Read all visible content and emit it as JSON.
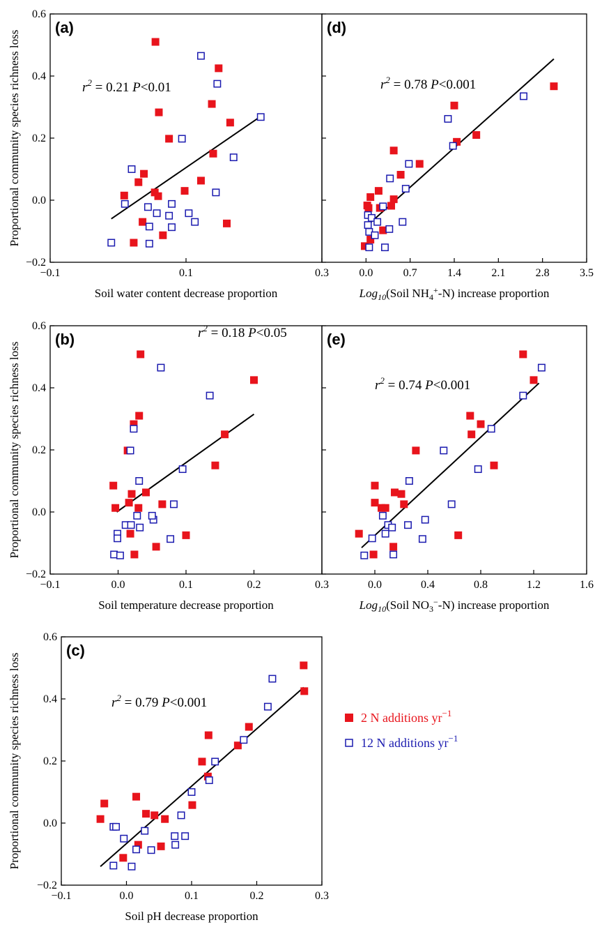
{
  "figure": {
    "ylabel": "Proportional community species richness loss",
    "legend": [
      {
        "label": "2 N additions yr",
        "sup": "−1",
        "color": "#e8141c",
        "marker": "filled-square"
      },
      {
        "label": "12 N additions yr",
        "sup": "−1",
        "color": "#1a1aaf",
        "marker": "open-square"
      }
    ]
  },
  "chart_data": [
    {
      "id": "a",
      "panel_label": "(a)",
      "type": "scatter",
      "xlabel": "Soil water content decrease proportion",
      "xlim": [
        -0.1,
        0.3
      ],
      "ylim": [
        -0.2,
        0.6
      ],
      "xticks": [
        "-0.1",
        "0.1",
        "0.3"
      ],
      "yticks": [
        "-0.2",
        "0.0",
        "0.2",
        "0.4",
        "0.6"
      ],
      "stat": {
        "r2": "0.21",
        "p": "0.01"
      },
      "fit": [
        [
          -0.01,
          -0.06
        ],
        [
          0.21,
          0.27
        ]
      ],
      "series": [
        {
          "name": "2 N additions yr−1",
          "marker": "filled",
          "points": [
            [
              0.055,
              0.51
            ],
            [
              0.148,
              0.425
            ],
            [
              0.138,
              0.31
            ],
            [
              0.06,
              0.283
            ],
            [
              0.165,
              0.25
            ],
            [
              0.075,
              0.198
            ],
            [
              0.14,
              0.15
            ],
            [
              0.038,
              0.085
            ],
            [
              0.122,
              0.063
            ],
            [
              0.03,
              0.058
            ],
            [
              0.098,
              0.03
            ],
            [
              0.054,
              0.025
            ],
            [
              0.009,
              0.015
            ],
            [
              0.059,
              0.013
            ],
            [
              0.036,
              -0.07
            ],
            [
              0.16,
              -0.075
            ],
            [
              0.066,
              -0.113
            ],
            [
              0.023,
              -0.137
            ]
          ]
        },
        {
          "name": "12 N additions yr−1",
          "marker": "open",
          "points": [
            [
              0.122,
              0.465
            ],
            [
              0.146,
              0.375
            ],
            [
              0.21,
              0.268
            ],
            [
              0.094,
              0.198
            ],
            [
              0.17,
              0.138
            ],
            [
              0.02,
              0.1
            ],
            [
              0.144,
              0.025
            ],
            [
              0.01,
              -0.012
            ],
            [
              0.079,
              -0.012
            ],
            [
              0.044,
              -0.022
            ],
            [
              0.057,
              -0.042
            ],
            [
              0.104,
              -0.042
            ],
            [
              0.075,
              -0.05
            ],
            [
              0.113,
              -0.07
            ],
            [
              0.046,
              -0.085
            ],
            [
              0.079,
              -0.087
            ],
            [
              -0.01,
              -0.137
            ],
            [
              0.046,
              -0.14
            ]
          ]
        }
      ]
    },
    {
      "id": "d",
      "panel_label": "(d)",
      "type": "scatter",
      "xlabel": "Log10(Soil NH4+-N) increase proportion",
      "xlim": [
        -0.7,
        3.5
      ],
      "ylim": [
        -0.2,
        0.6
      ],
      "xticks": [
        "0.0",
        "0.7",
        "1.4",
        "2.1",
        "2.8",
        "3.5"
      ],
      "xtick_values": [
        0,
        0.7,
        1.4,
        2.1,
        2.8,
        3.5
      ],
      "yticks": [],
      "ytick_values": [
        -0.2,
        0.0,
        0.2,
        0.4,
        0.6
      ],
      "stat": {
        "r2": "0.78",
        "p": "0.001"
      },
      "fit": [
        [
          0.0,
          -0.085
        ],
        [
          2.98,
          0.455
        ]
      ],
      "series": [
        {
          "name": "2 N additions yr−1",
          "marker": "filled",
          "points": [
            [
              2.98,
              0.367
            ],
            [
              1.4,
              0.305
            ],
            [
              1.75,
              0.21
            ],
            [
              1.44,
              0.188
            ],
            [
              0.44,
              0.16
            ],
            [
              0.85,
              0.117
            ],
            [
              0.55,
              0.082
            ],
            [
              0.2,
              0.03
            ],
            [
              0.07,
              0.01
            ],
            [
              0.44,
              0.003
            ],
            [
              0.02,
              -0.017
            ],
            [
              0.4,
              -0.018
            ],
            [
              0.04,
              -0.025
            ],
            [
              0.22,
              -0.025
            ],
            [
              0.27,
              -0.097
            ],
            [
              0.07,
              -0.127
            ],
            [
              -0.02,
              -0.148
            ]
          ]
        },
        {
          "name": "12 N additions yr−1",
          "marker": "open",
          "points": [
            [
              2.5,
              0.335
            ],
            [
              1.3,
              0.262
            ],
            [
              1.38,
              0.175
            ],
            [
              0.68,
              0.117
            ],
            [
              0.38,
              0.07
            ],
            [
              0.63,
              0.037
            ],
            [
              0.27,
              -0.02
            ],
            [
              0.03,
              -0.048
            ],
            [
              0.09,
              -0.057
            ],
            [
              0.58,
              -0.07
            ],
            [
              0.18,
              -0.07
            ],
            [
              0.03,
              -0.08
            ],
            [
              0.37,
              -0.093
            ],
            [
              0.05,
              -0.102
            ],
            [
              0.14,
              -0.113
            ],
            [
              0.3,
              -0.152
            ],
            [
              0.05,
              -0.152
            ]
          ]
        }
      ]
    },
    {
      "id": "b",
      "panel_label": "(b)",
      "type": "scatter",
      "xlabel": "Soil temperature decrease proportion",
      "xlim": [
        -0.1,
        0.3
      ],
      "ylim": [
        -0.2,
        0.6
      ],
      "xticks": [
        "-0.1",
        "0.0",
        "0.1",
        "0.2",
        "0.3"
      ],
      "yticks": [
        "-0.2",
        "0.0",
        "0.2",
        "0.4",
        "0.6"
      ],
      "stat": {
        "r2": "0.18",
        "p": "0.05"
      },
      "fit": [
        [
          -0.002,
          0.0
        ],
        [
          0.2,
          0.315
        ]
      ],
      "series": [
        {
          "name": "2 N additions yr−1",
          "marker": "filled",
          "points": [
            [
              0.033,
              0.508
            ],
            [
              0.2,
              0.425
            ],
            [
              0.031,
              0.31
            ],
            [
              0.023,
              0.283
            ],
            [
              0.157,
              0.25
            ],
            [
              0.014,
              0.198
            ],
            [
              0.143,
              0.15
            ],
            [
              -0.007,
              0.085
            ],
            [
              0.041,
              0.063
            ],
            [
              0.02,
              0.058
            ],
            [
              0.016,
              0.03
            ],
            [
              0.065,
              0.025
            ],
            [
              -0.004,
              0.013
            ],
            [
              0.03,
              0.013
            ],
            [
              0.018,
              -0.07
            ],
            [
              0.1,
              -0.075
            ],
            [
              0.056,
              -0.112
            ],
            [
              0.024,
              -0.137
            ]
          ]
        },
        {
          "name": "12 N additions yr−1",
          "marker": "open",
          "points": [
            [
              0.063,
              0.465
            ],
            [
              0.135,
              0.375
            ],
            [
              0.023,
              0.268
            ],
            [
              0.018,
              0.198
            ],
            [
              0.095,
              0.138
            ],
            [
              0.031,
              0.1
            ],
            [
              0.082,
              0.025
            ],
            [
              0.052,
              -0.025
            ],
            [
              0.028,
              -0.012
            ],
            [
              0.05,
              -0.012
            ],
            [
              0.011,
              -0.042
            ],
            [
              0.019,
              -0.042
            ],
            [
              0.032,
              -0.05
            ],
            [
              -0.001,
              -0.07
            ],
            [
              -0.001,
              -0.085
            ],
            [
              0.077,
              -0.087
            ],
            [
              -0.006,
              -0.137
            ],
            [
              0.003,
              -0.14
            ]
          ]
        }
      ]
    },
    {
      "id": "e",
      "panel_label": "(e)",
      "type": "scatter",
      "xlabel": "Log10(Soil NO3--N) increase proportion",
      "xlim": [
        -0.4,
        1.6
      ],
      "ylim": [
        -0.2,
        0.6
      ],
      "xticks": [
        "0.0",
        "0.4",
        "0.8",
        "1.2",
        "1.6"
      ],
      "xtick_values": [
        0,
        0.4,
        0.8,
        1.2,
        1.6
      ],
      "yticks": [],
      "ytick_values": [
        -0.2,
        0.0,
        0.2,
        0.4,
        0.6
      ],
      "stat": {
        "r2": "0.74",
        "p": "0.001"
      },
      "fit": [
        [
          -0.1,
          -0.115
        ],
        [
          1.24,
          0.415
        ]
      ],
      "series": [
        {
          "name": "2 N additions yr−1",
          "marker": "filled",
          "points": [
            [
              1.12,
              0.508
            ],
            [
              1.2,
              0.425
            ],
            [
              0.72,
              0.31
            ],
            [
              0.8,
              0.283
            ],
            [
              0.73,
              0.25
            ],
            [
              0.31,
              0.198
            ],
            [
              0.9,
              0.15
            ],
            [
              0.0,
              0.085
            ],
            [
              0.15,
              0.063
            ],
            [
              0.2,
              0.058
            ],
            [
              0.0,
              0.03
            ],
            [
              0.22,
              0.025
            ],
            [
              0.05,
              0.013
            ],
            [
              0.08,
              0.013
            ],
            [
              -0.12,
              -0.07
            ],
            [
              0.63,
              -0.075
            ],
            [
              0.14,
              -0.112
            ],
            [
              -0.01,
              -0.137
            ]
          ]
        },
        {
          "name": "12 N additions yr−1",
          "marker": "open",
          "points": [
            [
              1.26,
              0.465
            ],
            [
              1.12,
              0.375
            ],
            [
              0.88,
              0.268
            ],
            [
              0.52,
              0.198
            ],
            [
              0.78,
              0.138
            ],
            [
              0.26,
              0.1
            ],
            [
              0.58,
              0.025
            ],
            [
              0.38,
              -0.025
            ],
            [
              0.06,
              -0.012
            ],
            [
              0.1,
              -0.042
            ],
            [
              0.25,
              -0.042
            ],
            [
              0.13,
              -0.05
            ],
            [
              0.08,
              -0.07
            ],
            [
              -0.02,
              -0.085
            ],
            [
              0.36,
              -0.087
            ],
            [
              0.14,
              -0.137
            ],
            [
              -0.08,
              -0.14
            ]
          ]
        }
      ]
    },
    {
      "id": "c",
      "panel_label": "(c)",
      "type": "scatter",
      "xlabel": "Soil pH decrease proportion",
      "xlim": [
        -0.1,
        0.3
      ],
      "ylim": [
        -0.2,
        0.6
      ],
      "xticks": [
        "-0.1",
        "0.0",
        "0.1",
        "0.2",
        "0.3"
      ],
      "yticks": [
        "-0.2",
        "0.0",
        "0.2",
        "0.4",
        "0.6"
      ],
      "stat": {
        "r2": "0.79",
        "p": "0.001"
      },
      "fit": [
        [
          -0.04,
          -0.14
        ],
        [
          0.272,
          0.437
        ]
      ],
      "series": [
        {
          "name": "2 N additions yr−1",
          "marker": "filled",
          "points": [
            [
              0.272,
              0.508
            ],
            [
              0.273,
              0.425
            ],
            [
              0.188,
              0.31
            ],
            [
              0.126,
              0.283
            ],
            [
              0.171,
              0.25
            ],
            [
              0.116,
              0.198
            ],
            [
              0.125,
              0.15
            ],
            [
              0.015,
              0.085
            ],
            [
              -0.034,
              0.063
            ],
            [
              0.101,
              0.058
            ],
            [
              0.03,
              0.03
            ],
            [
              0.043,
              0.025
            ],
            [
              -0.04,
              0.013
            ],
            [
              0.059,
              0.013
            ],
            [
              0.018,
              -0.07
            ],
            [
              0.053,
              -0.075
            ],
            [
              -0.005,
              -0.112
            ]
          ]
        },
        {
          "name": "12 N additions yr−1",
          "marker": "open",
          "points": [
            [
              0.224,
              0.465
            ],
            [
              0.217,
              0.375
            ],
            [
              0.18,
              0.268
            ],
            [
              0.136,
              0.198
            ],
            [
              0.127,
              0.138
            ],
            [
              0.1,
              0.1
            ],
            [
              0.084,
              0.025
            ],
            [
              0.028,
              -0.025
            ],
            [
              -0.02,
              -0.012
            ],
            [
              -0.016,
              -0.012
            ],
            [
              0.074,
              -0.042
            ],
            [
              0.09,
              -0.042
            ],
            [
              -0.004,
              -0.05
            ],
            [
              0.075,
              -0.07
            ],
            [
              0.015,
              -0.085
            ],
            [
              0.038,
              -0.087
            ],
            [
              -0.02,
              -0.137
            ],
            [
              0.008,
              -0.14
            ]
          ]
        }
      ]
    }
  ]
}
